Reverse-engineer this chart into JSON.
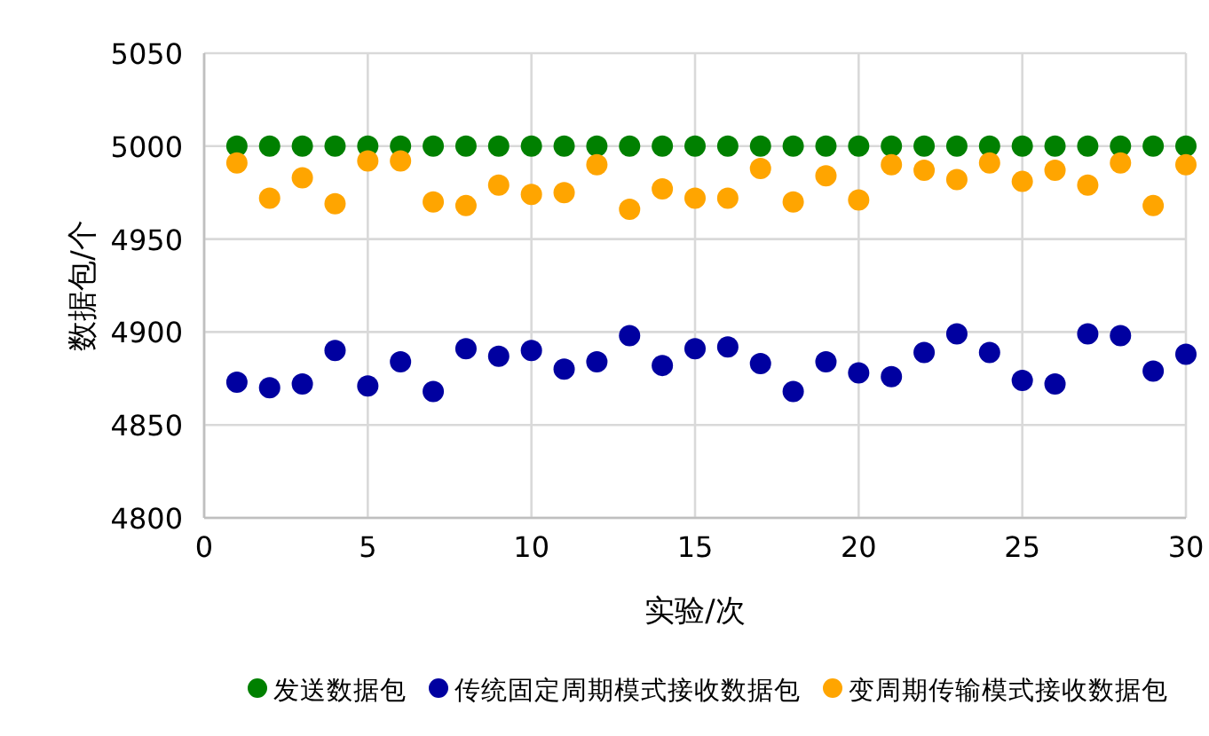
{
  "chart_data": {
    "type": "scatter",
    "xlabel": "实验/次",
    "ylabel": "数据包/个",
    "xlim": [
      0,
      30
    ],
    "xticks": [
      0,
      5,
      10,
      15,
      20,
      25,
      30
    ],
    "ylim": [
      4800,
      5050
    ],
    "yticks": [
      4800,
      4850,
      4900,
      4950,
      5000,
      5050
    ],
    "grid": true,
    "legend": "bottom",
    "marker": "circle",
    "x": [
      1,
      2,
      3,
      4,
      5,
      6,
      7,
      8,
      9,
      10,
      11,
      12,
      13,
      14,
      15,
      16,
      17,
      18,
      19,
      20,
      21,
      22,
      23,
      24,
      25,
      26,
      27,
      28,
      29,
      30
    ],
    "series": [
      {
        "name": "发送数据包",
        "color": "#008000",
        "values": [
          5000,
          5000,
          5000,
          5000,
          5000,
          5000,
          5000,
          5000,
          5000,
          5000,
          5000,
          5000,
          5000,
          5000,
          5000,
          5000,
          5000,
          5000,
          5000,
          5000,
          5000,
          5000,
          5000,
          5000,
          5000,
          5000,
          5000,
          5000,
          5000,
          5000
        ]
      },
      {
        "name": "传统固定周期模式接收数据包",
        "color": "#0000a0",
        "values": [
          4873,
          4870,
          4872,
          4890,
          4871,
          4884,
          4868,
          4891,
          4887,
          4890,
          4880,
          4884,
          4898,
          4882,
          4891,
          4892,
          4883,
          4868,
          4884,
          4878,
          4876,
          4889,
          4899,
          4889,
          4874,
          4872,
          4899,
          4898,
          4879,
          4888
        ]
      },
      {
        "name": "变周期传输模式接收数据包",
        "color": "#ffa500",
        "values": [
          4991,
          4972,
          4983,
          4969,
          4992,
          4992,
          4970,
          4968,
          4979,
          4974,
          4975,
          4990,
          4966,
          4977,
          4972,
          4972,
          4988,
          4970,
          4984,
          4971,
          4990,
          4987,
          4982,
          4991,
          4981,
          4987,
          4979,
          4991,
          4968,
          4990
        ]
      }
    ]
  }
}
